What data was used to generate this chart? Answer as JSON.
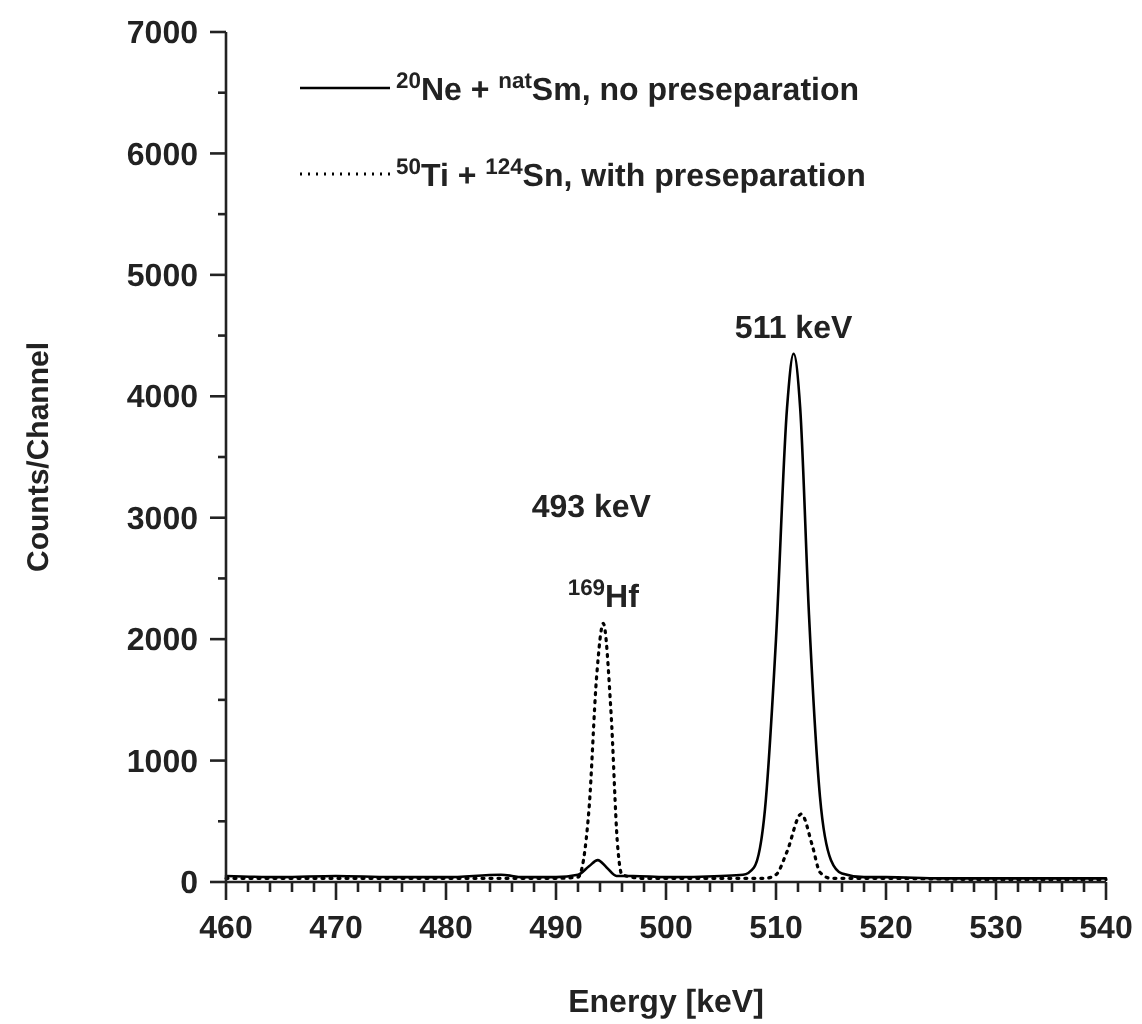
{
  "chart_data": {
    "type": "line",
    "xlabel": "Energy [keV]",
    "ylabel": "Counts/Channel",
    "xlim": [
      460,
      540
    ],
    "ylim": [
      0,
      7000
    ],
    "xticks": [
      460,
      {
        "value": 462,
        "label": null
      },
      {
        "value": 464,
        "label": null
      },
      {
        "value": 466,
        "label": null
      },
      {
        "value": 468,
        "label": null
      },
      470,
      {
        "value": 472,
        "label": null
      },
      {
        "value": 474,
        "label": null
      },
      {
        "value": 476,
        "label": null
      },
      {
        "value": 478,
        "label": null
      },
      480,
      {
        "value": 482,
        "label": null
      },
      {
        "value": 484,
        "label": null
      },
      {
        "value": 486,
        "label": null
      },
      {
        "value": 488,
        "label": null
      },
      490,
      {
        "value": 492,
        "label": null
      },
      {
        "value": 494,
        "label": null
      },
      {
        "value": 496,
        "label": null
      },
      {
        "value": 498,
        "label": null
      },
      500,
      {
        "value": 502,
        "label": null
      },
      {
        "value": 504,
        "label": null
      },
      {
        "value": 506,
        "label": null
      },
      {
        "value": 508,
        "label": null
      },
      510,
      {
        "value": 512,
        "label": null
      },
      {
        "value": 514,
        "label": null
      },
      {
        "value": 516,
        "label": null
      },
      {
        "value": 518,
        "label": null
      },
      520,
      {
        "value": 522,
        "label": null
      },
      {
        "value": 524,
        "label": null
      },
      {
        "value": 526,
        "label": null
      },
      {
        "value": 528,
        "label": null
      },
      530,
      {
        "value": 532,
        "label": null
      },
      {
        "value": 534,
        "label": null
      },
      {
        "value": 536,
        "label": null
      },
      {
        "value": 538,
        "label": null
      },
      540
    ],
    "yticks": [
      0,
      {
        "value": 500,
        "label": null
      },
      1000,
      {
        "value": 1500,
        "label": null
      },
      2000,
      {
        "value": 2500,
        "label": null
      },
      3000,
      {
        "value": 3500,
        "label": null
      },
      4000,
      {
        "value": 4500,
        "label": null
      },
      5000,
      {
        "value": 5500,
        "label": null
      },
      6000,
      {
        "value": 6500,
        "label": null
      },
      7000
    ],
    "grid": false,
    "legend": "top left",
    "marker": "none",
    "series": [
      {
        "name": "$^{20}$Ne + $^{nat}$Sm, no preseparation",
        "color": "#000000",
        "line_style": "solid",
        "x": [
          460,
          465,
          470,
          475,
          480,
          485,
          487,
          490,
          492,
          493,
          493.8,
          494.6,
          495.5,
          497,
          500,
          505,
          507,
          508,
          509,
          510,
          511,
          511.6,
          512.2,
          513,
          514,
          515,
          516,
          518,
          520,
          525,
          530,
          535,
          540
        ],
        "values": [
          50,
          40,
          50,
          40,
          40,
          60,
          40,
          40,
          60,
          130,
          180,
          120,
          50,
          50,
          40,
          50,
          60,
          120,
          600,
          2000,
          3900,
          4350,
          3900,
          2200,
          700,
          180,
          70,
          40,
          40,
          30,
          30,
          30,
          30
        ]
      },
      {
        "name": "$^{50}$Ti + $^{124}$Sn, with preseparation",
        "color": "#000000",
        "line_style": "dotted",
        "x": [
          460,
          470,
          480,
          490,
          492,
          493,
          493.7,
          494.3,
          495,
          495.6,
          496,
          498,
          505,
          509,
          510,
          511,
          512.3,
          513.3,
          514,
          515,
          520,
          530,
          540
        ],
        "values": [
          30,
          30,
          30,
          30,
          40,
          600,
          1700,
          2130,
          1400,
          300,
          60,
          30,
          30,
          30,
          60,
          250,
          560,
          300,
          80,
          30,
          30,
          20,
          20
        ]
      }
    ],
    "annotations": [
      {
        "text": "511 keV",
        "x": 511.6,
        "y": 4350
      },
      "493 keV",
      {
        "text": "$^{169}$Hf",
        "x": 494.3,
        "y": 2130
      }
    ]
  }
}
